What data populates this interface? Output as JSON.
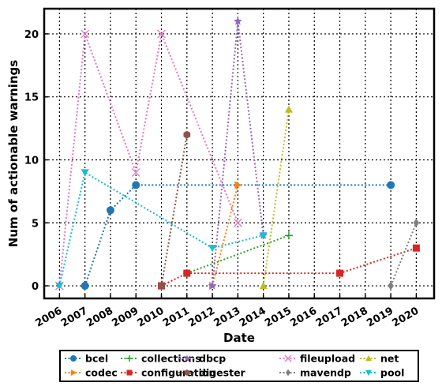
{
  "chart_data": {
    "type": "line",
    "title": "",
    "xlabel": "Date",
    "ylabel": "Num of actionable warnings",
    "xlim": [
      2005.4,
      2020.7
    ],
    "ylim": [
      -1,
      22
    ],
    "xticks": [
      2006,
      2007,
      2008,
      2009,
      2010,
      2011,
      2012,
      2013,
      2014,
      2015,
      2016,
      2017,
      2018,
      2019,
      2020
    ],
    "xtick_labels": [
      "2006",
      "2007",
      "2008",
      "2009",
      "2010",
      "2011",
      "2012",
      "2013",
      "2014",
      "2015",
      "2016",
      "2017",
      "2018",
      "2019",
      "2020"
    ],
    "yticks": [
      0,
      5,
      10,
      15,
      20
    ],
    "ytick_labels": [
      "0",
      "5",
      "10",
      "15",
      "20"
    ],
    "grid": true,
    "legend_placement": "bottom-center",
    "series": [
      {
        "name": "bcel",
        "color": "#1f77b4",
        "marker": "circle",
        "x": [
          2007,
          2008,
          2009,
          2019
        ],
        "y": [
          0,
          6,
          8,
          8
        ]
      },
      {
        "name": "codec",
        "color": "#ff7f0e",
        "marker": "triangle-right",
        "x": [
          2012,
          2013
        ],
        "y": [
          0,
          8
        ]
      },
      {
        "name": "collections",
        "color": "#2ca02c",
        "marker": "plus",
        "x": [
          2011,
          2015
        ],
        "y": [
          1,
          4
        ]
      },
      {
        "name": "configuration",
        "color": "#d62728",
        "marker": "square",
        "x": [
          2010,
          2011,
          2017,
          2020
        ],
        "y": [
          0,
          1,
          1,
          3
        ]
      },
      {
        "name": "dbcp",
        "color": "#9467bd",
        "marker": "star",
        "x": [
          2012,
          2013,
          2014
        ],
        "y": [
          0,
          21,
          4
        ]
      },
      {
        "name": "digester",
        "color": "#8c564b",
        "marker": "hexagon",
        "x": [
          2010,
          2011
        ],
        "y": [
          0,
          12
        ]
      },
      {
        "name": "fileupload",
        "color": "#e377c2",
        "marker": "x",
        "x": [
          2006,
          2007,
          2009,
          2010,
          2013
        ],
        "y": [
          0,
          20,
          9,
          20,
          5
        ]
      },
      {
        "name": "mavendp",
        "color": "#7f7f7f",
        "marker": "diamond",
        "x": [
          2019,
          2020
        ],
        "y": [
          0,
          5
        ]
      },
      {
        "name": "net",
        "color": "#bcbd22",
        "marker": "triangle-up",
        "x": [
          2014,
          2015
        ],
        "y": [
          0,
          14
        ]
      },
      {
        "name": "pool",
        "color": "#17becf",
        "marker": "triangle-down",
        "x": [
          2006,
          2007,
          2012,
          2014
        ],
        "y": [
          0,
          9,
          3,
          4
        ]
      }
    ]
  }
}
